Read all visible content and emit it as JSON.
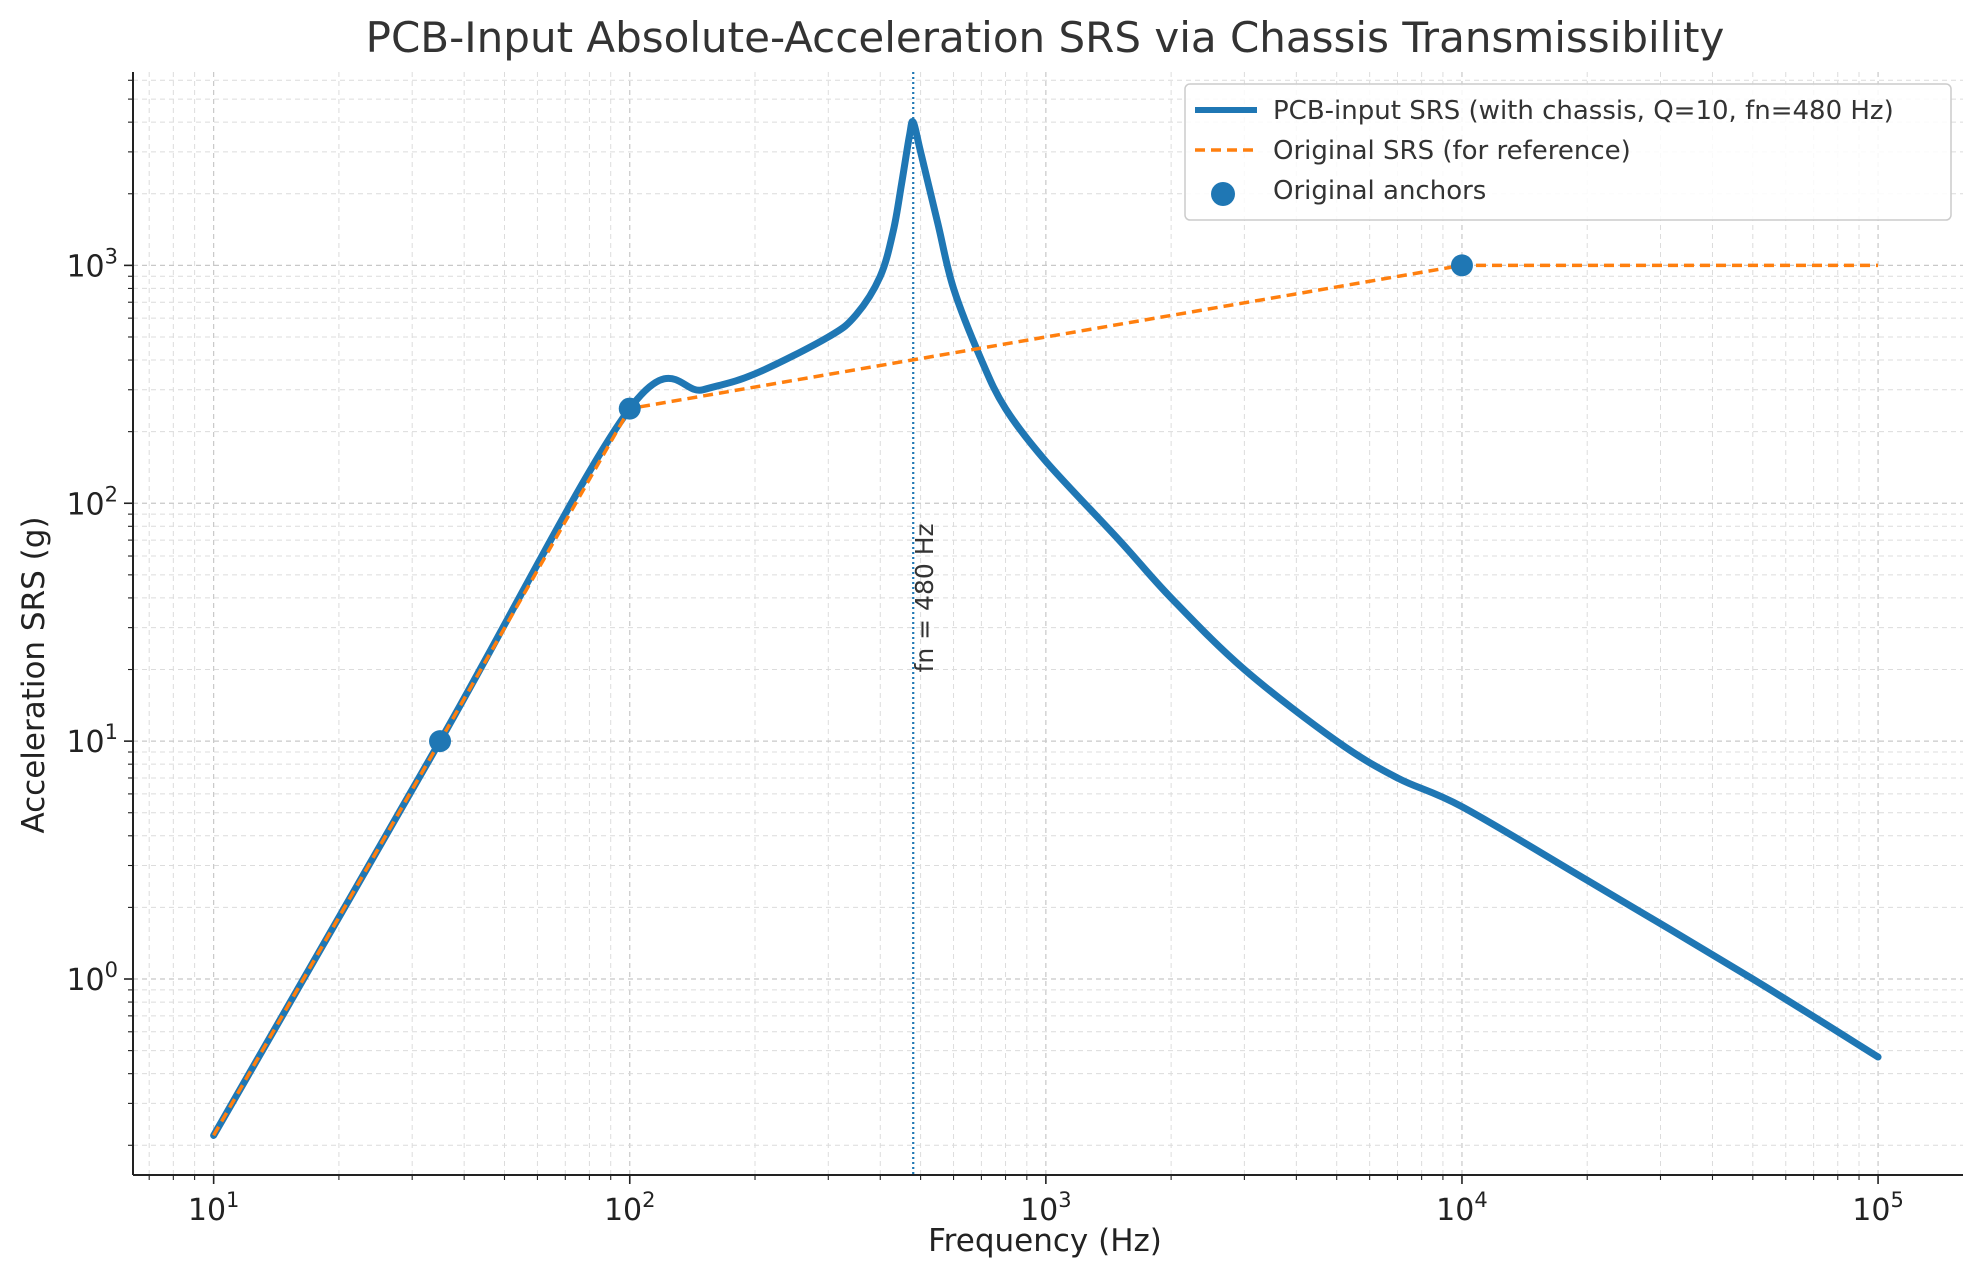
{
  "chart_data": {
    "type": "line",
    "title": "PCB-Input Absolute-Acceleration SRS via Chassis Transmissibility",
    "xlabel": "Frequency (Hz)",
    "ylabel": "Acceleration SRS (g)",
    "x_scale": "log",
    "y_scale": "log",
    "xlim": [
      6.4,
      160000
    ],
    "ylim": [
      0.15,
      6500
    ],
    "x_ticks": [
      {
        "value": 10,
        "base": "10",
        "exp": "1"
      },
      {
        "value": 100,
        "base": "10",
        "exp": "2"
      },
      {
        "value": 1000,
        "base": "10",
        "exp": "3"
      },
      {
        "value": 10000,
        "base": "10",
        "exp": "4"
      },
      {
        "value": 100000,
        "base": "10",
        "exp": "5"
      }
    ],
    "y_ticks": [
      {
        "value": 1,
        "base": "10",
        "exp": "0"
      },
      {
        "value": 10,
        "base": "10",
        "exp": "1"
      },
      {
        "value": 100,
        "base": "10",
        "exp": "2"
      },
      {
        "value": 1000,
        "base": "10",
        "exp": "3"
      }
    ],
    "grid": true,
    "legend_position": "top-right",
    "series": [
      {
        "name": "PCB-input SRS (with chassis, Q=10, fn=480 Hz)",
        "style": "solid",
        "color": "#1f77b4",
        "points": [
          [
            10,
            0.22
          ],
          [
            35,
            10
          ],
          [
            100,
            250
          ],
          [
            150,
            300
          ],
          [
            200,
            350
          ],
          [
            300,
            500
          ],
          [
            350,
            620
          ],
          [
            400,
            900
          ],
          [
            430,
            1400
          ],
          [
            450,
            2200
          ],
          [
            470,
            3500
          ],
          [
            480,
            4000
          ],
          [
            500,
            3000
          ],
          [
            550,
            1500
          ],
          [
            600,
            800
          ],
          [
            700,
            400
          ],
          [
            800,
            250
          ],
          [
            1000,
            150
          ],
          [
            1500,
            70
          ],
          [
            2000,
            40
          ],
          [
            3000,
            20
          ],
          [
            5000,
            10
          ],
          [
            7000,
            7
          ],
          [
            10000,
            5.3
          ],
          [
            20000,
            2.6
          ],
          [
            50000,
            1.0
          ],
          [
            100000,
            0.47
          ]
        ]
      },
      {
        "name": "Original SRS (for reference)",
        "style": "dashed",
        "color": "#ff7f0e",
        "points": [
          [
            10,
            0.22
          ],
          [
            35,
            10
          ],
          [
            100,
            250
          ],
          [
            10000,
            1000
          ],
          [
            100000,
            1000
          ]
        ]
      },
      {
        "name": "Original anchors",
        "style": "markers",
        "color": "#1f77b4",
        "points": [
          [
            35,
            10
          ],
          [
            100,
            250
          ],
          [
            10000,
            1000
          ]
        ]
      }
    ],
    "annotations": [
      {
        "type": "vline",
        "x": 480,
        "label": "fn = 480 Hz",
        "color": "#1f77b4"
      }
    ]
  }
}
